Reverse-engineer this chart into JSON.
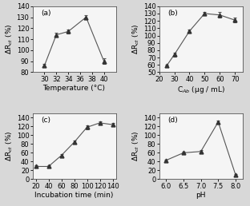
{
  "panel_a": {
    "x": [
      30,
      32,
      34,
      37,
      40
    ],
    "y": [
      86,
      114,
      117,
      130,
      90
    ],
    "yerr": [
      1.5,
      2,
      1.5,
      2,
      2.5
    ],
    "xlabel": "Temperature (°C)",
    "ylabel": "ΔR$_{ct}$ (%)",
    "xlim": [
      28,
      42
    ],
    "ylim": [
      80,
      140
    ],
    "yticks": [
      80,
      90,
      100,
      110,
      120,
      130,
      140
    ],
    "xticks": [
      30,
      32,
      34,
      36,
      38,
      40
    ],
    "label": "(a)"
  },
  "panel_b": {
    "x": [
      25,
      30,
      40,
      50,
      60,
      70
    ],
    "y": [
      59,
      74,
      106,
      130,
      128,
      121
    ],
    "yerr": [
      1.5,
      2.5,
      2,
      2,
      4,
      3
    ],
    "xlabel": "C$_{Ab}$ (μg / mL)",
    "ylabel": "ΔR$_{ct}$ (%)",
    "xlim": [
      20,
      75
    ],
    "ylim": [
      50,
      140
    ],
    "yticks": [
      50,
      60,
      70,
      80,
      90,
      100,
      110,
      120,
      130,
      140
    ],
    "xticks": [
      20,
      30,
      40,
      50,
      60,
      70
    ],
    "label": "(b)"
  },
  "panel_c": {
    "x": [
      20,
      40,
      60,
      80,
      100,
      120,
      140
    ],
    "y": [
      29,
      29,
      54,
      84,
      118,
      128,
      124
    ],
    "yerr": [
      2,
      2,
      3,
      4,
      4,
      4,
      3
    ],
    "xlabel": "Incubation time (min)",
    "ylabel": "ΔR$_{ct}$ (%)",
    "xlim": [
      15,
      145
    ],
    "ylim": [
      0,
      150
    ],
    "yticks": [
      0,
      20,
      40,
      60,
      80,
      100,
      120,
      140
    ],
    "xticks": [
      20,
      40,
      60,
      80,
      100,
      120,
      140
    ],
    "label": "(c)"
  },
  "panel_d": {
    "x": [
      6.0,
      6.5,
      7.0,
      7.5,
      8.0
    ],
    "y": [
      43,
      60,
      63,
      130,
      10
    ],
    "yerr": [
      2,
      2.5,
      2.5,
      4,
      2
    ],
    "xlabel": "pH",
    "ylabel": "ΔR$_{ct}$ (%)",
    "xlim": [
      5.8,
      8.2
    ],
    "ylim": [
      0,
      150
    ],
    "yticks": [
      0,
      20,
      40,
      60,
      80,
      100,
      120,
      140
    ],
    "xticks": [
      6.0,
      6.5,
      7.0,
      7.5,
      8.0
    ],
    "label": "(d)"
  },
  "line_color": "#555555",
  "marker": "^",
  "marker_size": 3.5,
  "marker_color": "#333333",
  "font_size": 6.5,
  "tick_font_size": 6,
  "fig_facecolor": "#d8d8d8",
  "ax_facecolor": "#f5f5f5"
}
